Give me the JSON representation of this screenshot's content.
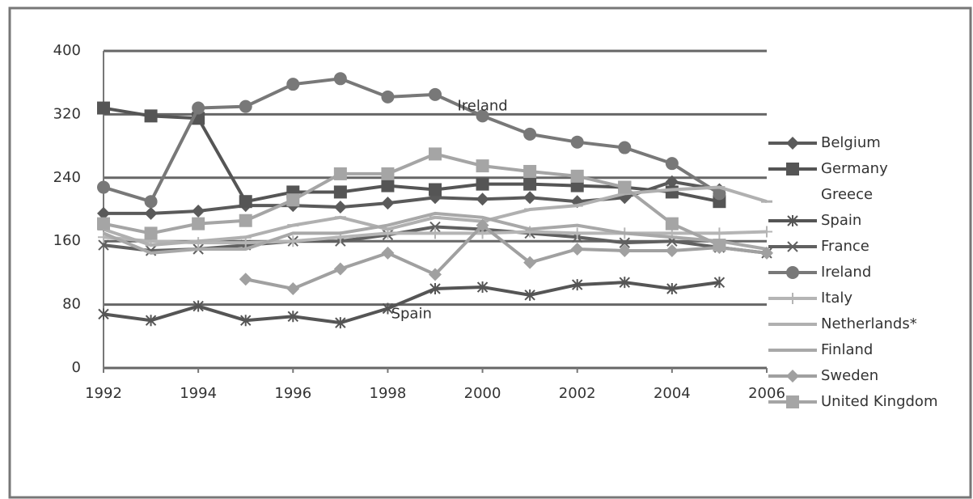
{
  "chart_data": {
    "type": "line",
    "annotations": [
      {
        "text": "Ireland",
        "x": 2000,
        "y": 330
      },
      {
        "text": "Spain",
        "x": 1998.5,
        "y": 68
      }
    ],
    "x": [
      1992,
      1993,
      1994,
      1995,
      1996,
      1997,
      1998,
      1999,
      2000,
      2001,
      2002,
      2003,
      2004,
      2005,
      2006
    ],
    "xlim": [
      1992,
      2006
    ],
    "xticks": [
      1992,
      1994,
      1996,
      1998,
      2000,
      2002,
      2004,
      2006
    ],
    "ylim": [
      0,
      400
    ],
    "yticks": [
      0,
      80,
      160,
      240,
      320,
      400
    ],
    "grid": true,
    "legend": "right",
    "series": [
      {
        "name": "Belgium",
        "color": "#5a5a5a",
        "marker": "diamond",
        "values": [
          195,
          195,
          198,
          205,
          205,
          203,
          208,
          215,
          213,
          215,
          210,
          215,
          235,
          225,
          null
        ]
      },
      {
        "name": "Germany",
        "color": "#555555",
        "marker": "square",
        "values": [
          328,
          318,
          315,
          210,
          222,
          222,
          230,
          225,
          232,
          232,
          230,
          228,
          222,
          210,
          null
        ]
      },
      {
        "name": "Greece",
        "values": [
          null,
          null,
          null,
          null,
          null,
          null,
          null,
          null,
          null,
          null,
          null,
          null,
          null,
          null,
          null
        ]
      },
      {
        "name": "Spain",
        "color": "#555555",
        "marker": "star",
        "values": [
          68,
          60,
          78,
          60,
          65,
          57,
          75,
          100,
          102,
          92,
          105,
          108,
          100,
          108,
          null
        ]
      },
      {
        "name": "France",
        "color": "#606060",
        "marker": "x",
        "values": [
          155,
          148,
          150,
          155,
          160,
          160,
          168,
          178,
          175,
          170,
          165,
          158,
          160,
          152,
          145
        ]
      },
      {
        "name": "Ireland",
        "color": "#787878",
        "marker": "circle",
        "values": [
          228,
          210,
          328,
          330,
          358,
          365,
          342,
          345,
          318,
          295,
          285,
          278,
          258,
          220,
          null
        ]
      },
      {
        "name": "Italy",
        "color": "#b5b5b5",
        "marker": "plus",
        "values": [
          165,
          160,
          158,
          158,
          160,
          165,
          170,
          170,
          170,
          172,
          170,
          170,
          170,
          170,
          172
        ]
      },
      {
        "name": "Netherlands*",
        "color": "#b0b0b0",
        "marker": "dash",
        "values": [
          175,
          155,
          160,
          165,
          180,
          190,
          175,
          190,
          185,
          200,
          205,
          220,
          225,
          228,
          210
        ]
      },
      {
        "name": "Finland",
        "color": "#a8a8a8",
        "marker": "none",
        "values": [
          170,
          145,
          150,
          150,
          170,
          170,
          180,
          195,
          190,
          175,
          180,
          170,
          165,
          160,
          150
        ]
      },
      {
        "name": "Sweden",
        "color": "#a0a0a0",
        "marker": "diamond",
        "values": [
          null,
          null,
          null,
          112,
          100,
          125,
          145,
          118,
          180,
          133,
          150,
          148,
          148,
          152,
          145
        ]
      },
      {
        "name": "United Kingdom",
        "color": "#a5a5a5",
        "marker": "square",
        "values": [
          182,
          170,
          182,
          186,
          212,
          245,
          245,
          270,
          255,
          248,
          242,
          228,
          182,
          155,
          null
        ]
      }
    ]
  }
}
